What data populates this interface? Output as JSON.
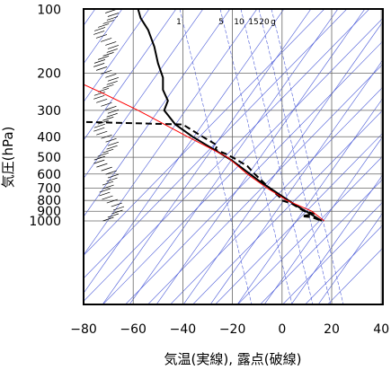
{
  "chart_data": {
    "type": "line",
    "chart_kind": "skew-T log-P aerological diagram",
    "xlabel": "気温(実線), 露点(破線)",
    "ylabel": "気圧(hPa)",
    "xlim": [
      -80,
      40
    ],
    "ylim_pressure_hPa": [
      1050,
      100
    ],
    "y_scale": "log",
    "x_ticks": [
      "−80",
      "−60",
      "−40",
      "−20",
      "0",
      "20",
      "40"
    ],
    "x_tick_values": [
      -80,
      -60,
      -40,
      -20,
      0,
      20,
      40
    ],
    "y_ticks": [
      "100",
      "200",
      "300",
      "400",
      "500",
      "600",
      "700",
      "800",
      "900",
      "1000"
    ],
    "y_tick_values": [
      100,
      200,
      300,
      400,
      500,
      600,
      700,
      800,
      900,
      1000
    ],
    "mixing_ratio_labels": [
      "1",
      "5",
      "10",
      "15",
      "20",
      "g"
    ],
    "grid": true,
    "colors": {
      "temperature": "#000000",
      "dew_point": "#000000",
      "parcel": "#ff0000",
      "background_lines": "#4a5ad8",
      "grid": "#666666",
      "wind_barbs": "#000000"
    },
    "series": [
      {
        "role": "temperature",
        "style": "solid",
        "points": [
          [
            16,
            1000
          ],
          [
            13,
            950
          ],
          [
            6,
            850
          ],
          [
            -1,
            750
          ],
          [
            -9,
            650
          ],
          [
            -20,
            520
          ],
          [
            -26,
            470
          ],
          [
            -36,
            400
          ],
          [
            -43,
            350
          ],
          [
            -47.5,
            300
          ],
          [
            -46,
            270
          ],
          [
            -48,
            240
          ],
          [
            -48,
            210
          ],
          [
            -50,
            180
          ],
          [
            -51.5,
            150
          ],
          [
            -54,
            125
          ],
          [
            -57,
            110
          ],
          [
            -58,
            100
          ]
        ]
      },
      {
        "role": "dew_point",
        "style": "dashed",
        "points": [
          [
            15,
            990
          ],
          [
            12,
            960
          ],
          [
            8,
            950
          ],
          [
            13,
            925
          ],
          [
            9,
            900
          ],
          [
            4,
            830
          ],
          [
            0,
            800
          ],
          [
            -1,
            770
          ],
          [
            -5,
            700
          ],
          [
            -11,
            600
          ],
          [
            -14,
            550
          ],
          [
            -20,
            500
          ],
          [
            -23,
            480
          ],
          [
            -27,
            460
          ],
          [
            -26,
            440
          ],
          [
            -32,
            400
          ],
          [
            -40,
            350
          ],
          [
            -81,
            340
          ]
        ]
      },
      {
        "role": "parcel",
        "style": "solid",
        "points": [
          [
            17,
            1000
          ],
          [
            12,
            900
          ],
          [
            2,
            800
          ],
          [
            -6,
            700
          ],
          [
            -14,
            600
          ],
          [
            -22,
            500
          ],
          [
            -38,
            400
          ],
          [
            -58,
            300
          ],
          [
            -72,
            250
          ],
          [
            -86,
            210
          ]
        ]
      }
    ]
  }
}
